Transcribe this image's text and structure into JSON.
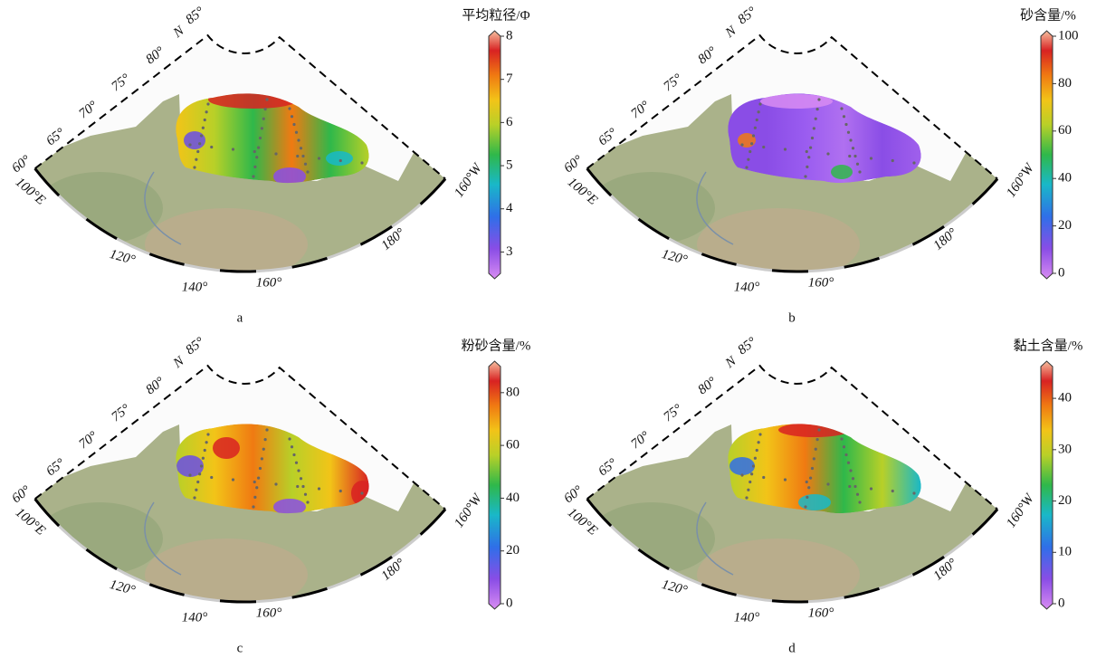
{
  "map": {
    "lat_labels": [
      "60°",
      "65°",
      "70°",
      "75°",
      "80°",
      "85°"
    ],
    "n_label": "N",
    "lon_labels": [
      "100°E",
      "120°",
      "140°",
      "160°",
      "180°",
      "160°W"
    ]
  },
  "panels": [
    {
      "label": "a",
      "colorbar": {
        "title": "平均粒径/Φ",
        "ticks": [
          3,
          4,
          5,
          6,
          7,
          8
        ]
      }
    },
    {
      "label": "b",
      "colorbar": {
        "title": "砂含量/%",
        "ticks": [
          0,
          20,
          40,
          60,
          80,
          100
        ]
      }
    },
    {
      "label": "c",
      "colorbar": {
        "title": "粉砂含量/%",
        "ticks": [
          0,
          20,
          40,
          60,
          80
        ]
      }
    },
    {
      "label": "d",
      "colorbar": {
        "title": "黏土含量/%",
        "ticks": [
          0,
          10,
          20,
          30,
          40
        ]
      }
    }
  ]
}
